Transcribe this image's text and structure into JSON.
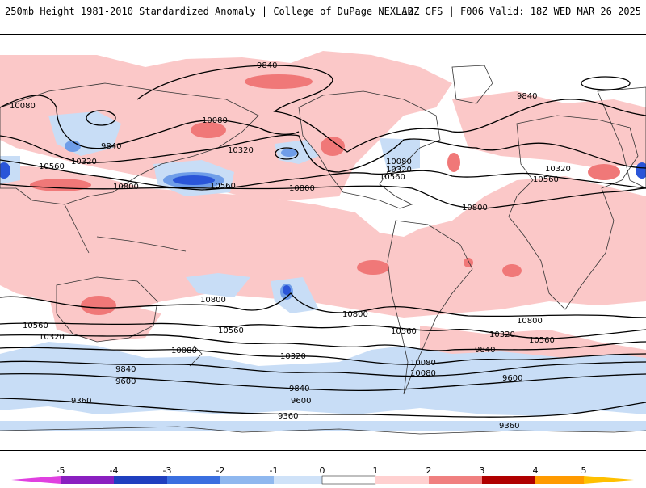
{
  "header": {
    "left_title": "250mb Height 1981-2010 Standardized Anomaly | College of DuPage NEXLAB",
    "right_title": "12Z GFS | F006 Valid: 18Z WED MAR 26 2025"
  },
  "contour_labels": [
    {
      "text": "9840"
    },
    {
      "text": "10080"
    },
    {
      "text": "9840"
    },
    {
      "text": "10080"
    },
    {
      "text": "10320"
    },
    {
      "text": "10560"
    },
    {
      "text": "10320"
    },
    {
      "text": "10560"
    },
    {
      "text": "10800"
    },
    {
      "text": "10800"
    },
    {
      "text": "10080"
    },
    {
      "text": "10320"
    },
    {
      "text": "10560"
    },
    {
      "text": "10800"
    },
    {
      "text": "10320"
    },
    {
      "text": "10560"
    },
    {
      "text": "9840"
    },
    {
      "text": "10800"
    },
    {
      "text": "10560"
    },
    {
      "text": "10320"
    },
    {
      "text": "10080"
    },
    {
      "text": "9840"
    },
    {
      "text": "9600"
    },
    {
      "text": "10800"
    },
    {
      "text": "10560"
    },
    {
      "text": "10320"
    },
    {
      "text": "9840"
    },
    {
      "text": "9600"
    },
    {
      "text": "10800"
    },
    {
      "text": "10560"
    },
    {
      "text": "10320"
    },
    {
      "text": "10080"
    },
    {
      "text": "9840"
    },
    {
      "text": "9600"
    },
    {
      "text": "9360"
    },
    {
      "text": "9360"
    },
    {
      "text": "9360"
    },
    {
      "text": "10560"
    },
    {
      "text": "10080"
    }
  ],
  "colorbar": {
    "ticks": [
      "-5",
      "-4",
      "-3",
      "-2",
      "-1",
      "0",
      "1",
      "2",
      "3",
      "4",
      "5"
    ],
    "colors": [
      "#e040e0",
      "#8a1fc0",
      "#1f3fbf",
      "#3a6fe0",
      "#8fb8ef",
      "#cfe2f8",
      "#ffffff",
      "#ffd0d0",
      "#f08080",
      "#d03030",
      "#b00000",
      "#ff9a00",
      "#ffc000"
    ]
  },
  "colors": {
    "positive_light": "#fbc8c8",
    "positive_mid": "#f07878",
    "negative_light": "#c8ddf6",
    "negative_mid": "#6f9de8",
    "negative_strong": "#2a55d8",
    "land_lines": "#333333"
  }
}
